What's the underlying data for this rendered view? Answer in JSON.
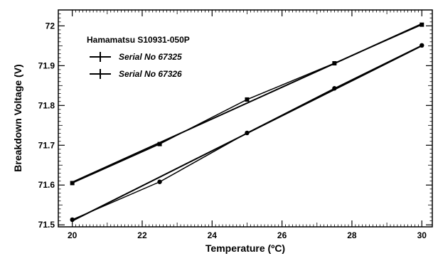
{
  "chart_data": {
    "type": "line",
    "title": "",
    "xlabel": "Temperature (ºC)",
    "ylabel": "Breakdown Voltage (V)",
    "xlim": [
      19.6,
      30.3
    ],
    "ylim": [
      71.495,
      72.04
    ],
    "x_ticks": [
      "20",
      "22",
      "24",
      "26",
      "28",
      "30"
    ],
    "y_ticks": [
      "71.5",
      "71.6",
      "71.7",
      "71.8",
      "71.9",
      "72"
    ],
    "legend": {
      "title": "Hamamatsu S10931-050P",
      "position": "top-left"
    },
    "series": [
      {
        "name": "Serial No 67325",
        "marker": "square",
        "x": [
          20,
          22.5,
          25,
          27.5,
          30
        ],
        "y": [
          71.605,
          71.703,
          71.815,
          71.906,
          72.003
        ],
        "fit": [
          [
            20,
            71.607
          ],
          [
            30,
            72.005
          ]
        ]
      },
      {
        "name": "Serial No 67326",
        "marker": "circle",
        "x": [
          20,
          22.5,
          25,
          27.5,
          30
        ],
        "y": [
          71.513,
          71.608,
          71.731,
          71.843,
          71.951
        ],
        "fit": [
          [
            20,
            71.51
          ],
          [
            30,
            71.95
          ]
        ]
      }
    ],
    "grid": false,
    "color": "#000000"
  }
}
